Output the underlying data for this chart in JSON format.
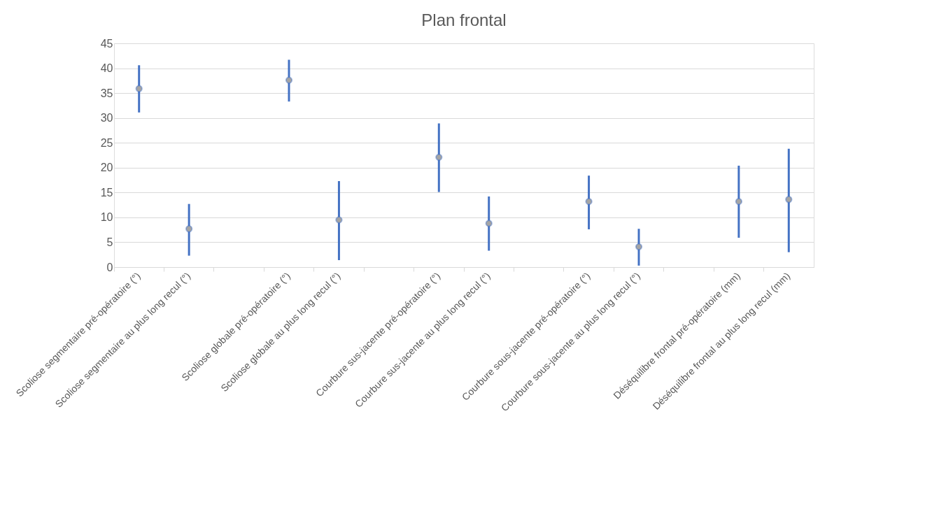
{
  "chart_data": {
    "type": "scatter",
    "title": "Plan frontal",
    "categories": [
      "Scoliose segmentaire pré-opératoire (°)",
      "Scoliose segmentaire au plus long recul (°)",
      null,
      "Scoliose globale pré-opératoire (°)",
      "Scoliose globale au plus long recul (°)",
      null,
      "Courbure sus-jacente pré-opératoire (°)",
      "Courbure sus-jacente au plus long recul (°)",
      null,
      "Courbure sous-jacente pré-opératoire (°)",
      "Courbure sous-jacente au plus long recul (°)",
      null,
      "Déséquilibre frontal pré-opératoire (mm)",
      "Déséquilibre frontal au plus long recul (mm)"
    ],
    "series": [
      {
        "color": "#4472c4",
        "values": [
          35.9,
          7.7,
          null,
          37.6,
          9.5,
          null,
          22.1,
          8.8,
          null,
          13.2,
          4.1,
          null,
          13.2,
          13.6
        ],
        "errors": [
          [
            31.1,
            40.6
          ],
          [
            2.3,
            12.7
          ],
          null,
          [
            33.3,
            41.7
          ],
          [
            1.4,
            17.3
          ],
          null,
          [
            15.1,
            28.9
          ],
          [
            3.3,
            14.2
          ],
          null,
          [
            7.6,
            18.4
          ],
          [
            0.3,
            7.7
          ],
          null,
          [
            5.9,
            20.4
          ],
          [
            3.0,
            23.8
          ]
        ]
      }
    ],
    "ylim": [
      0,
      45
    ],
    "yticks": [
      0,
      5,
      10,
      15,
      20,
      25,
      30,
      35,
      40,
      45
    ],
    "grid": "y",
    "marker": "circle"
  }
}
